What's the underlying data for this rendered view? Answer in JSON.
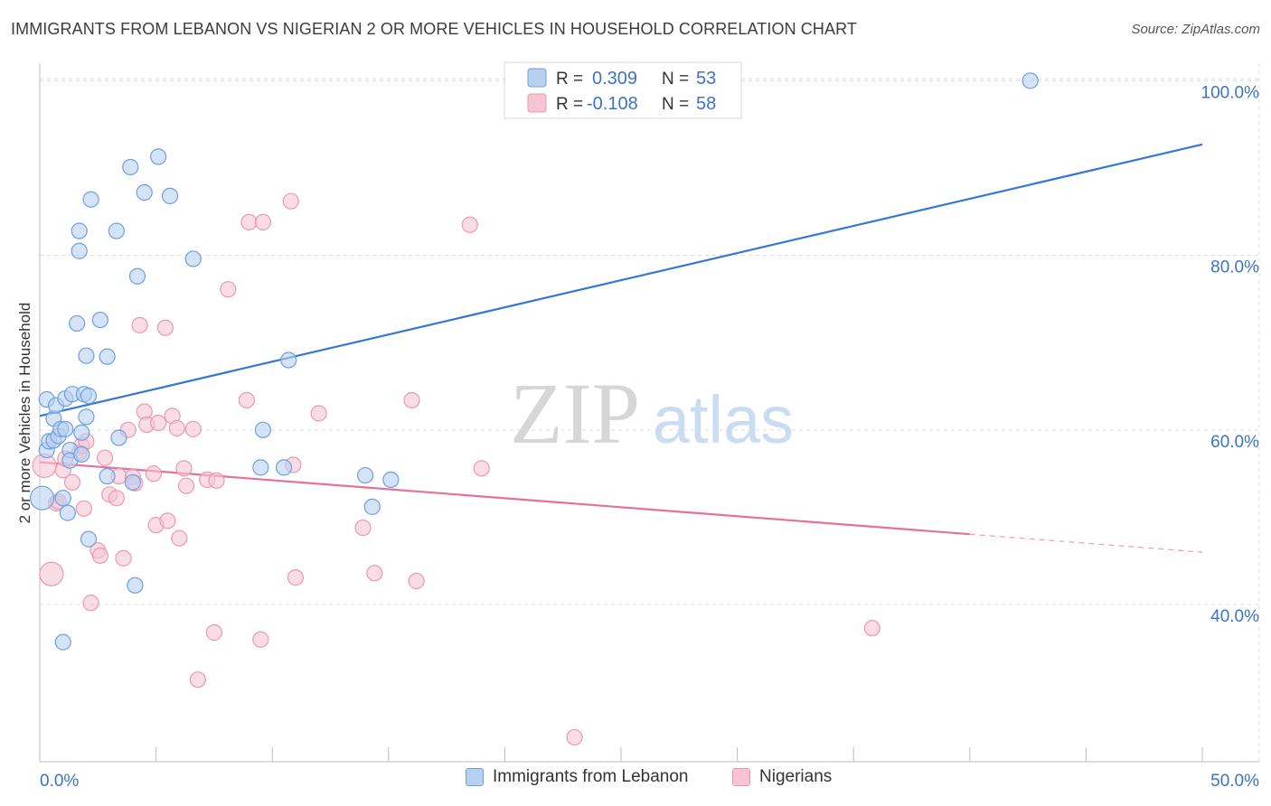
{
  "header": {
    "title": "IMMIGRANTS FROM LEBANON VS NIGERIAN 2 OR MORE VEHICLES IN HOUSEHOLD CORRELATION CHART",
    "source": "Source: ZipAtlas.com"
  },
  "watermark": {
    "zip": "ZIP",
    "atlas": "atlas"
  },
  "colors": {
    "blue_fill": "#b8d0f0",
    "blue_stroke": "#6f9fdb",
    "blue_line": "#3578d4",
    "pink_fill": "#f7c4d4",
    "pink_stroke": "#e99ab2",
    "pink_line": "#e5709a",
    "value_text": "#3b74c6",
    "grid": "#dddddd"
  },
  "legend": {
    "rows": [
      {
        "r_label": "R =",
        "r_value": "0.309",
        "n_label": "N =",
        "n_value": "53"
      },
      {
        "r_label": "R =",
        "r_value": "-0.108",
        "n_label": "N =",
        "n_value": "58"
      }
    ]
  },
  "chart_data": {
    "type": "scatter",
    "title": "IMMIGRANTS FROM LEBANON VS NIGERIAN 2 OR MORE VEHICLES IN HOUSEHOLD CORRELATION CHART",
    "xlabel": "",
    "ylabel": "2 or more Vehicles in Household",
    "xlim": [
      0,
      50
    ],
    "ylim": [
      22,
      102
    ],
    "x_tick_labels": [
      {
        "value": 0,
        "label": "0.0%"
      },
      {
        "value": 50,
        "label": "50.0%"
      }
    ],
    "x_minor_ticks": [
      0,
      5,
      10,
      15,
      20,
      25,
      30,
      35,
      40,
      45,
      50
    ],
    "y_tick_labels": [
      {
        "value": 40,
        "label": "40.0%"
      },
      {
        "value": 60,
        "label": "60.0%"
      },
      {
        "value": 80,
        "label": "80.0%"
      },
      {
        "value": 100,
        "label": "100.0%"
      }
    ],
    "grid": true,
    "legend_position": "top-center",
    "series": [
      {
        "name": "Immigrants from Lebanon",
        "r": 0.309,
        "n": 53,
        "trend": {
          "x": [
            0,
            50
          ],
          "y": [
            61.6,
            92.7
          ],
          "dashed_from": null
        },
        "points": [
          {
            "x": 0.1,
            "y": 52.2,
            "big": true
          },
          {
            "x": 0.3,
            "y": 63.5
          },
          {
            "x": 0.3,
            "y": 57.7
          },
          {
            "x": 0.4,
            "y": 58.7
          },
          {
            "x": 0.6,
            "y": 58.8
          },
          {
            "x": 0.6,
            "y": 61.3
          },
          {
            "x": 0.7,
            "y": 62.8
          },
          {
            "x": 0.8,
            "y": 59.3
          },
          {
            "x": 0.9,
            "y": 60.1
          },
          {
            "x": 1.0,
            "y": 52.2
          },
          {
            "x": 1.0,
            "y": 35.7
          },
          {
            "x": 1.1,
            "y": 63.6
          },
          {
            "x": 1.1,
            "y": 60.1
          },
          {
            "x": 1.2,
            "y": 50.5
          },
          {
            "x": 1.3,
            "y": 57.7
          },
          {
            "x": 1.3,
            "y": 56.5
          },
          {
            "x": 1.4,
            "y": 64.1
          },
          {
            "x": 1.6,
            "y": 72.2
          },
          {
            "x": 1.7,
            "y": 80.5
          },
          {
            "x": 1.7,
            "y": 82.8
          },
          {
            "x": 1.8,
            "y": 59.7
          },
          {
            "x": 1.8,
            "y": 57.2
          },
          {
            "x": 1.9,
            "y": 64.1
          },
          {
            "x": 2.0,
            "y": 61.5
          },
          {
            "x": 2.0,
            "y": 68.5
          },
          {
            "x": 2.1,
            "y": 63.9
          },
          {
            "x": 2.1,
            "y": 47.5
          },
          {
            "x": 2.2,
            "y": 86.4
          },
          {
            "x": 2.6,
            "y": 72.6
          },
          {
            "x": 2.9,
            "y": 68.4
          },
          {
            "x": 2.9,
            "y": 54.7
          },
          {
            "x": 3.3,
            "y": 82.8
          },
          {
            "x": 3.4,
            "y": 59.1
          },
          {
            "x": 3.9,
            "y": 90.1
          },
          {
            "x": 4.0,
            "y": 54.0
          },
          {
            "x": 4.1,
            "y": 42.2
          },
          {
            "x": 4.2,
            "y": 77.6
          },
          {
            "x": 4.5,
            "y": 87.2
          },
          {
            "x": 5.1,
            "y": 91.3
          },
          {
            "x": 5.6,
            "y": 86.8
          },
          {
            "x": 6.6,
            "y": 79.6
          },
          {
            "x": 9.6,
            "y": 60.0
          },
          {
            "x": 9.5,
            "y": 55.7
          },
          {
            "x": 10.5,
            "y": 55.7
          },
          {
            "x": 10.7,
            "y": 68.0
          },
          {
            "x": 14.0,
            "y": 54.8
          },
          {
            "x": 14.3,
            "y": 51.2
          },
          {
            "x": 15.1,
            "y": 54.3
          },
          {
            "x": 42.6,
            "y": 100.0
          }
        ]
      },
      {
        "name": "Nigerians",
        "r": -0.108,
        "n": 58,
        "trend": {
          "x": [
            0,
            50
          ],
          "y": [
            56.3,
            46.0
          ],
          "dashed_from": 40
        },
        "points": [
          {
            "x": 0.2,
            "y": 55.9,
            "big": true
          },
          {
            "x": 0.5,
            "y": 43.5,
            "big": true
          },
          {
            "x": 0.7,
            "y": 51.6
          },
          {
            "x": 0.8,
            "y": 51.8
          },
          {
            "x": 1.0,
            "y": 55.4
          },
          {
            "x": 1.1,
            "y": 56.7
          },
          {
            "x": 1.4,
            "y": 54.0
          },
          {
            "x": 1.7,
            "y": 57.4
          },
          {
            "x": 1.8,
            "y": 58.2
          },
          {
            "x": 1.9,
            "y": 51.0
          },
          {
            "x": 2.0,
            "y": 58.7
          },
          {
            "x": 2.2,
            "y": 40.2
          },
          {
            "x": 2.5,
            "y": 46.2
          },
          {
            "x": 2.6,
            "y": 45.6
          },
          {
            "x": 2.8,
            "y": 56.8
          },
          {
            "x": 3.0,
            "y": 52.6
          },
          {
            "x": 3.3,
            "y": 52.2
          },
          {
            "x": 3.4,
            "y": 54.7
          },
          {
            "x": 3.6,
            "y": 45.3
          },
          {
            "x": 3.8,
            "y": 60.0
          },
          {
            "x": 4.0,
            "y": 54.6
          },
          {
            "x": 4.1,
            "y": 53.9
          },
          {
            "x": 4.3,
            "y": 72.0
          },
          {
            "x": 4.5,
            "y": 62.1
          },
          {
            "x": 4.6,
            "y": 60.6
          },
          {
            "x": 4.9,
            "y": 55.0
          },
          {
            "x": 5.0,
            "y": 49.1
          },
          {
            "x": 5.1,
            "y": 60.8
          },
          {
            "x": 5.4,
            "y": 71.7
          },
          {
            "x": 5.5,
            "y": 49.6
          },
          {
            "x": 5.7,
            "y": 61.6
          },
          {
            "x": 5.9,
            "y": 60.2
          },
          {
            "x": 6.0,
            "y": 47.6
          },
          {
            "x": 6.2,
            "y": 55.6
          },
          {
            "x": 6.3,
            "y": 53.6
          },
          {
            "x": 6.6,
            "y": 60.1
          },
          {
            "x": 6.8,
            "y": 31.4
          },
          {
            "x": 7.2,
            "y": 54.3
          },
          {
            "x": 7.5,
            "y": 36.8
          },
          {
            "x": 7.6,
            "y": 54.2
          },
          {
            "x": 8.1,
            "y": 76.1
          },
          {
            "x": 8.9,
            "y": 63.4
          },
          {
            "x": 9.0,
            "y": 83.8
          },
          {
            "x": 9.5,
            "y": 36.0
          },
          {
            "x": 9.6,
            "y": 83.8
          },
          {
            "x": 10.8,
            "y": 86.2
          },
          {
            "x": 10.9,
            "y": 56.0
          },
          {
            "x": 11.0,
            "y": 43.1
          },
          {
            "x": 12.0,
            "y": 61.9
          },
          {
            "x": 13.9,
            "y": 48.8
          },
          {
            "x": 14.4,
            "y": 43.6
          },
          {
            "x": 16.0,
            "y": 63.4
          },
          {
            "x": 16.2,
            "y": 42.7
          },
          {
            "x": 18.5,
            "y": 83.5
          },
          {
            "x": 19.0,
            "y": 55.6
          },
          {
            "x": 23.0,
            "y": 24.8
          },
          {
            "x": 35.8,
            "y": 37.3
          }
        ]
      }
    ]
  }
}
